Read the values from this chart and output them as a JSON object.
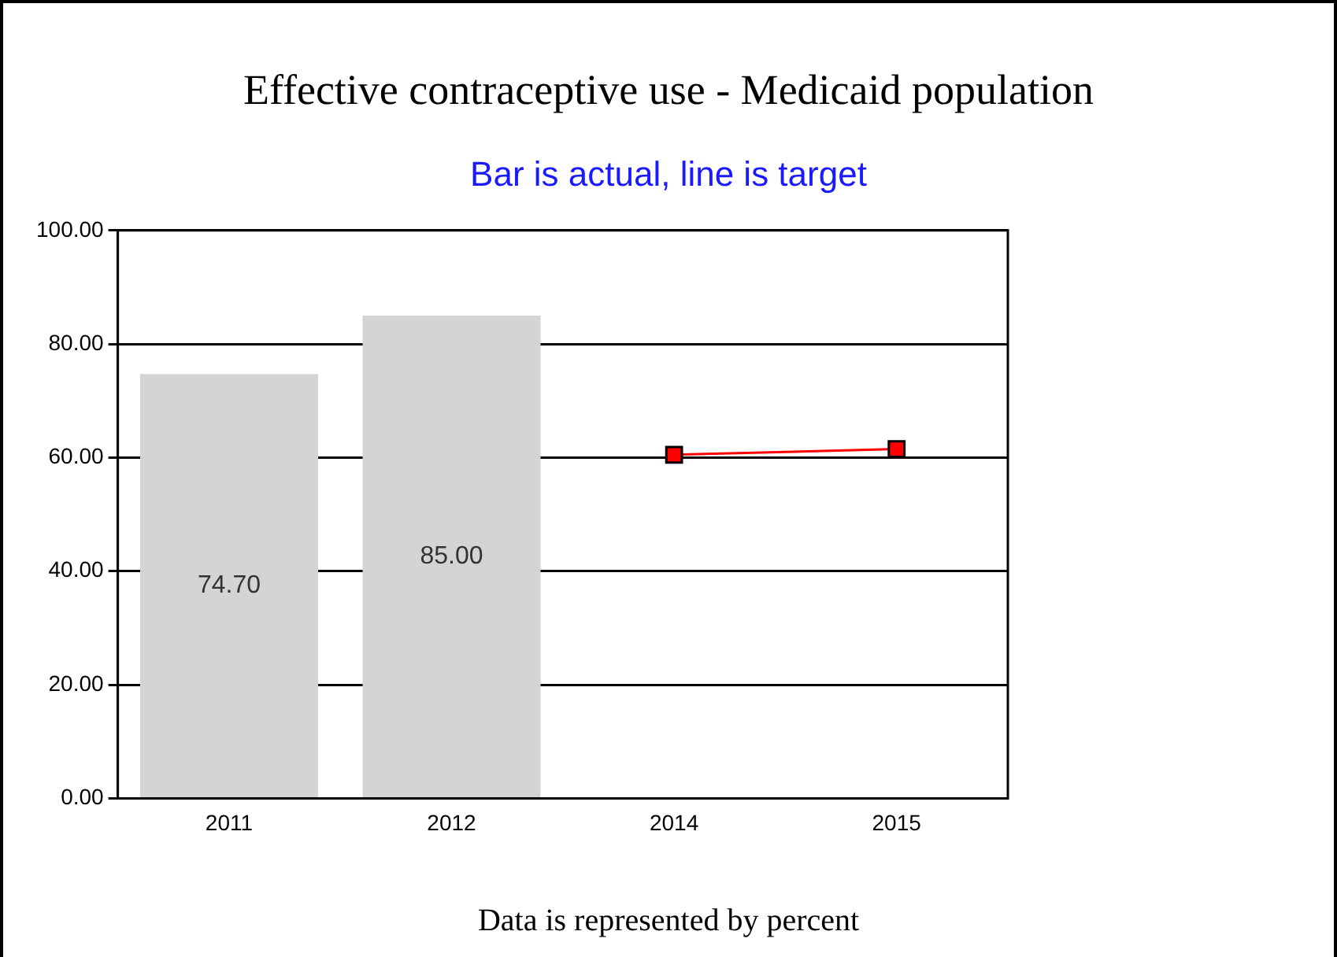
{
  "chart_data": {
    "type": "bar",
    "title": "Effective contraceptive use - Medicaid population",
    "subtitle": "Bar is actual, line is target",
    "annotations": [
      "Data is represented by percent"
    ],
    "categories": [
      "2011",
      "2012",
      "2014",
      "2015"
    ],
    "series": [
      {
        "color": "#d4d4d4",
        "values": [
          74.7,
          85,
          null,
          null
        ],
        "value_labels": [
          "74.70",
          "85.00",
          null,
          null
        ]
      },
      {
        "type": "line",
        "color": "#ff0000",
        "values": [
          null,
          null,
          60.5,
          61.5
        ],
        "marker": "square"
      }
    ],
    "ylim": [
      0,
      100
    ],
    "yticks": [
      {
        "value": 0,
        "label": "0.00"
      },
      {
        "value": 20,
        "label": "20.00"
      },
      {
        "value": 40,
        "label": "40.00"
      },
      {
        "value": 60,
        "label": "60.00"
      },
      {
        "value": 80,
        "label": "80.00"
      },
      {
        "value": 100,
        "label": "100.00"
      }
    ],
    "grid": "y",
    "legend": false
  }
}
